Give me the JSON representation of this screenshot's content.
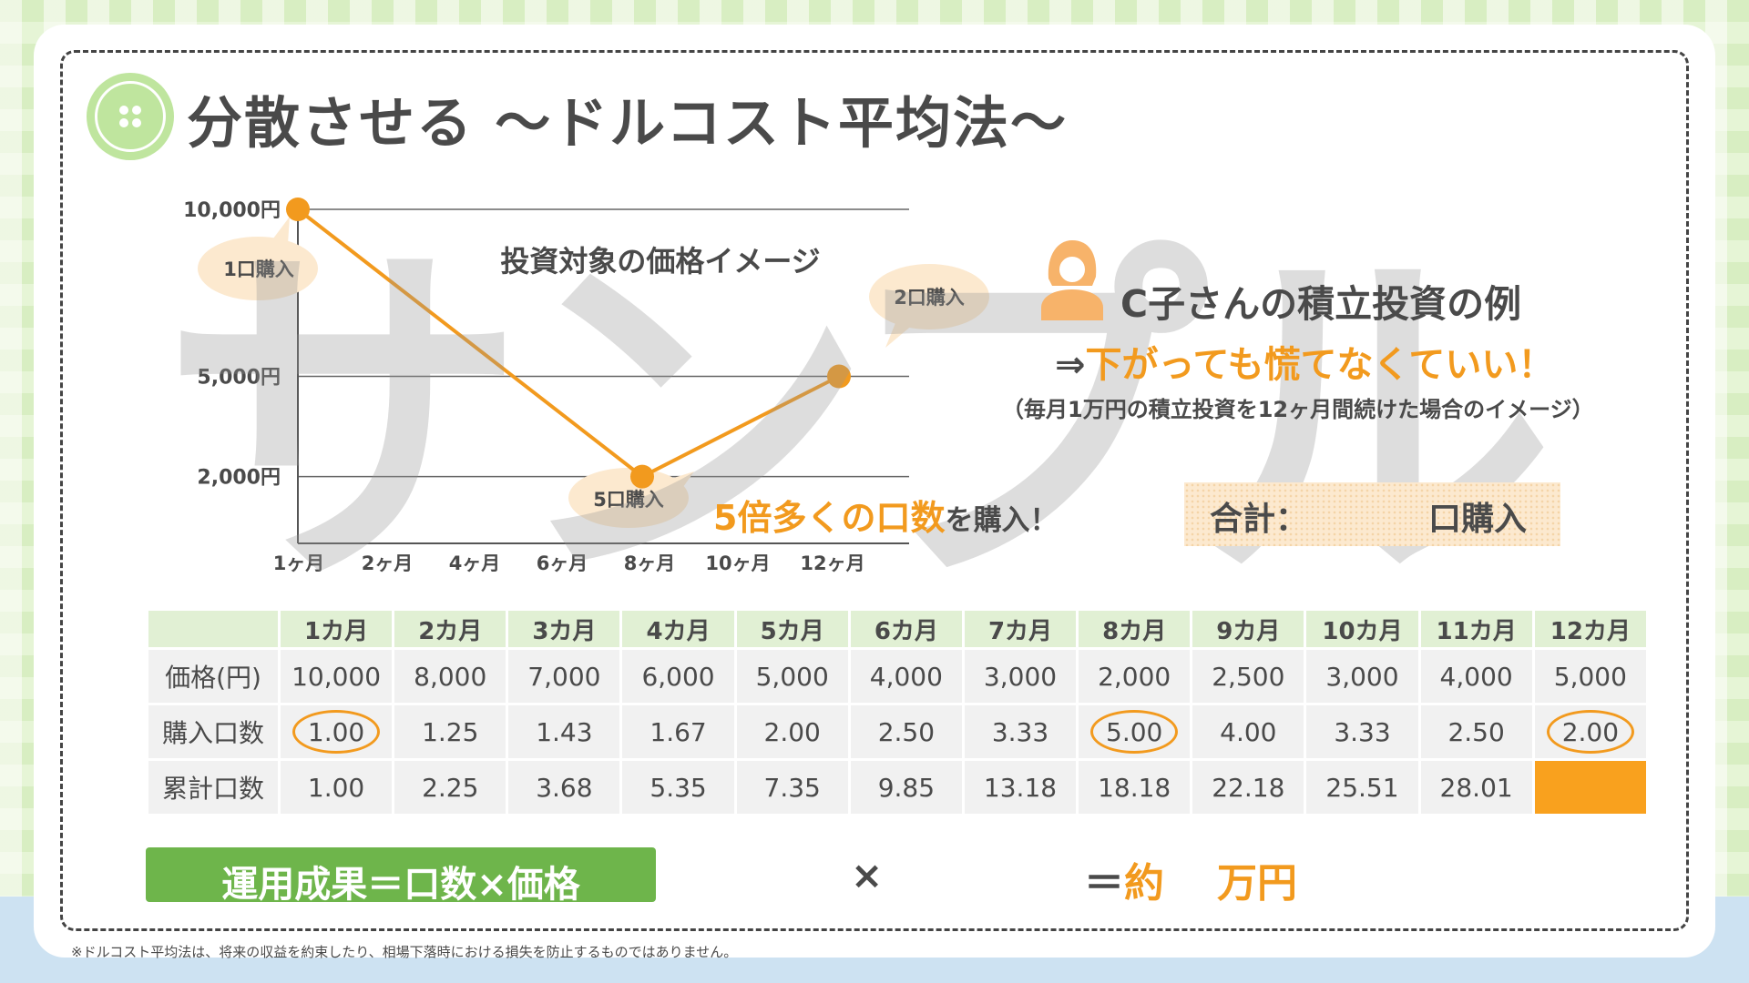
{
  "title": "分散させる ～ドルコスト平均法～",
  "watermark": "サンプル",
  "chart_data": {
    "type": "line",
    "title": "投資対象の価格イメージ",
    "x_tick_labels": [
      "1ヶ月",
      "2ヶ月",
      "4ヶ月",
      "6ヶ月",
      "8ヶ月",
      "10ヶ月",
      "12ヶ月"
    ],
    "y_tick_labels": [
      "10,000円",
      "5,000円",
      "2,000円"
    ],
    "y_ticks": [
      10000,
      5000,
      2000
    ],
    "ylim": [
      0,
      10000
    ],
    "xlim": [
      1,
      13
    ],
    "series": [
      {
        "x": [
          1,
          8,
          12
        ],
        "values": [
          10000,
          2000,
          5000
        ]
      }
    ],
    "callouts": [
      "1口購入",
      "5口購入",
      "2口購入"
    ],
    "line_color": "#f29a1e",
    "grid": true
  },
  "example": {
    "title": "C子さんの積立投資の例",
    "arrow": "⇒",
    "message": "下がっても慌てなくていい！",
    "note": "（毎月1万円の積立投資を12ヶ月間続けた場合のイメージ）"
  },
  "multiplier": {
    "highlight": "5倍多くの口数",
    "suffix": "を購入！"
  },
  "total": {
    "label": "合計：",
    "suffix": "口購入"
  },
  "table": {
    "headers": [
      "1カ月",
      "2カ月",
      "3カ月",
      "4カ月",
      "5カ月",
      "6カ月",
      "7カ月",
      "8カ月",
      "9カ月",
      "10カ月",
      "11カ月",
      "12カ月"
    ],
    "rows": [
      {
        "label": "価格(円)",
        "values": [
          "10,000",
          "8,000",
          "7,000",
          "6,000",
          "5,000",
          "4,000",
          "3,000",
          "2,000",
          "2,500",
          "3,000",
          "4,000",
          "5,000"
        ]
      },
      {
        "label": "購入口数",
        "values": [
          "1.00",
          "1.25",
          "1.43",
          "1.67",
          "2.00",
          "2.50",
          "3.33",
          "5.00",
          "4.00",
          "3.33",
          "2.50",
          "2.00"
        ]
      },
      {
        "label": "累計口数",
        "values": [
          "1.00",
          "2.25",
          "3.68",
          "5.35",
          "7.35",
          "9.85",
          "13.18",
          "18.18",
          "22.18",
          "25.51",
          "28.01",
          ""
        ]
      }
    ],
    "circled": [
      "1.00",
      "5.00",
      "2.00"
    ]
  },
  "formula": {
    "label": "運用成果＝口数×価格",
    "times": "×",
    "equals": "＝",
    "approx": "約",
    "unit": "万円"
  },
  "footnote": "※ドルコスト平均法は、将来の収益を約束したり、相場下落時における損失を防止するものではありません。",
  "colors": {
    "accent": "#f29a1e",
    "green": "#6eb54b",
    "text": "#4a4a4a",
    "header_green": "#e1f0d4"
  }
}
